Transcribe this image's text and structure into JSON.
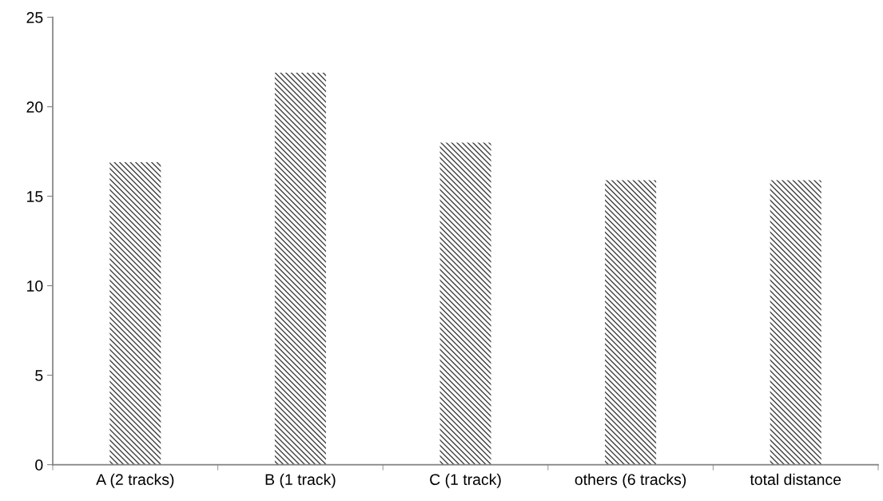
{
  "chart_data": {
    "type": "bar",
    "categories": [
      "A (2 tracks)",
      "B (1 track)",
      "C (1 track)",
      "others (6 tracks)",
      "total distance"
    ],
    "values": [
      16.9,
      21.9,
      18,
      15.9,
      15.9
    ],
    "color": "#404040",
    "ylim": [
      0,
      25
    ],
    "yticks": [
      0,
      5,
      10,
      15,
      20,
      25
    ],
    "grid": false
  }
}
